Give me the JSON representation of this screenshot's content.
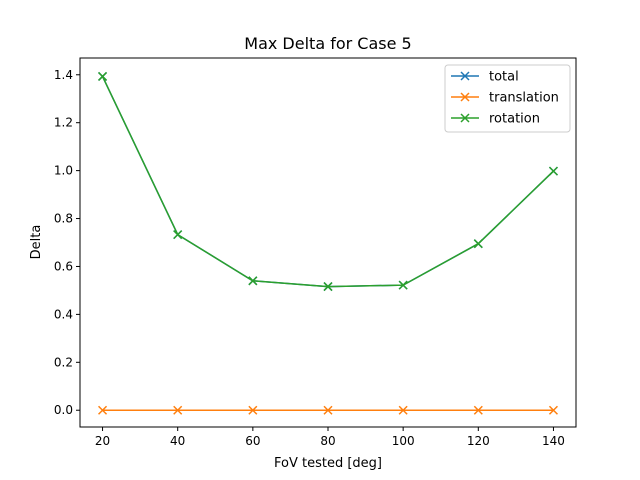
{
  "chart_data": {
    "type": "line",
    "title": "Max Delta for Case 5",
    "xlabel": "FoV tested [deg]",
    "ylabel": "Delta",
    "x": [
      20,
      40,
      60,
      80,
      100,
      120,
      140
    ],
    "xticks": [
      "20",
      "40",
      "60",
      "80",
      "100",
      "120",
      "140"
    ],
    "yticks": [
      "0.0",
      "0.2",
      "0.4",
      "0.6",
      "0.8",
      "1.0",
      "1.2",
      "1.4"
    ],
    "xlim": [
      14,
      146
    ],
    "ylim": [
      -0.07,
      1.47
    ],
    "grid": false,
    "legend_position": "upper right",
    "marker": "x",
    "series": [
      {
        "name": "total",
        "color": "#1f77b4",
        "values": [
          1.393,
          0.733,
          0.54,
          0.516,
          0.522,
          0.695,
          0.998
        ]
      },
      {
        "name": "translation",
        "color": "#ff7f0e",
        "values": [
          0.0,
          0.0,
          0.0,
          0.0,
          0.0,
          0.0,
          0.0
        ]
      },
      {
        "name": "rotation",
        "color": "#2ca02c",
        "values": [
          1.393,
          0.733,
          0.54,
          0.516,
          0.522,
          0.695,
          0.998
        ]
      }
    ]
  }
}
